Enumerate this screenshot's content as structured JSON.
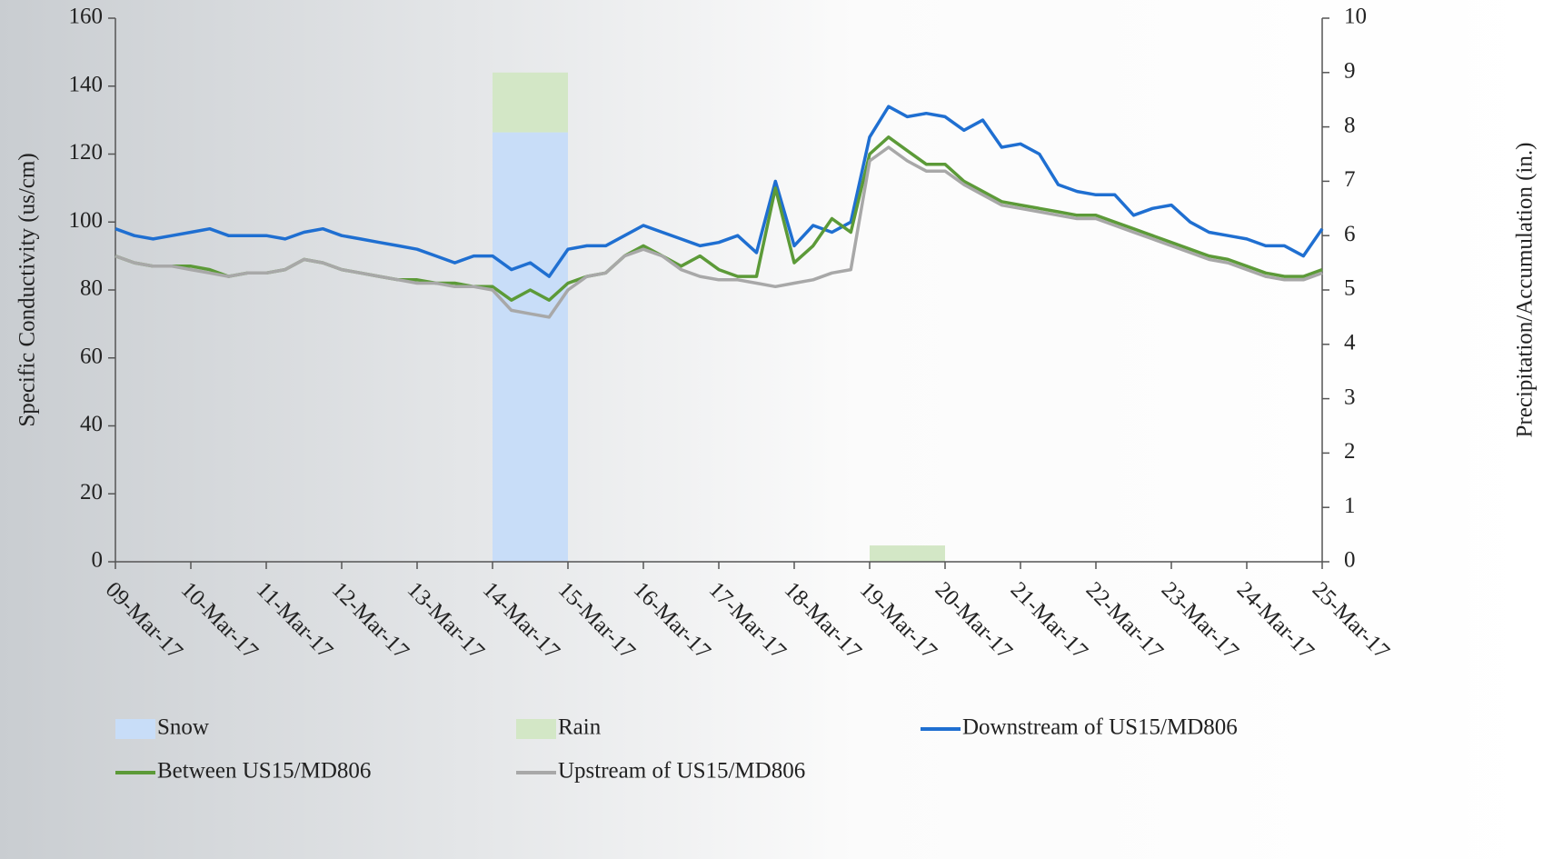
{
  "chart_data": {
    "type": "line",
    "y_label": "Specific Conductivity (us/cm)",
    "y2_label": "Precipitation/Accumulation  (in.)",
    "xlim": [
      0,
      16
    ],
    "xticks": [
      {
        "value": 0,
        "label": "09-Mar-17"
      },
      {
        "value": 1,
        "label": "10-Mar-17"
      },
      {
        "value": 2,
        "label": "11-Mar-17"
      },
      {
        "value": 3,
        "label": "12-Mar-17"
      },
      {
        "value": 4,
        "label": "13-Mar-17"
      },
      {
        "value": 5,
        "label": "14-Mar-17"
      },
      {
        "value": 6,
        "label": "15-Mar-17"
      },
      {
        "value": 7,
        "label": "16-Mar-17"
      },
      {
        "value": 8,
        "label": "17-Mar-17"
      },
      {
        "value": 9,
        "label": "18-Mar-17"
      },
      {
        "value": 10,
        "label": "19-Mar-17"
      },
      {
        "value": 11,
        "label": "20-Mar-17"
      },
      {
        "value": 12,
        "label": "21-Mar-17"
      },
      {
        "value": 13,
        "label": "22-Mar-17"
      },
      {
        "value": 14,
        "label": "23-Mar-17"
      },
      {
        "value": 15,
        "label": "24-Mar-17"
      },
      {
        "value": 16,
        "label": "25-Mar-17"
      }
    ],
    "ylim": [
      0,
      160
    ],
    "yticks": [
      0,
      20,
      40,
      60,
      80,
      100,
      120,
      140,
      160
    ],
    "y2lim": [
      0,
      10
    ],
    "y2ticks": [
      0,
      1,
      2,
      3,
      4,
      5,
      6,
      7,
      8,
      9,
      10
    ],
    "bars": [
      {
        "name": "Snow",
        "color": "#c8ddf8",
        "axis": "y2",
        "x_start": [
          5
        ],
        "x_end": [
          6
        ],
        "values": [
          7.9
        ]
      },
      {
        "name": "Rain",
        "color": "#d3e7c6",
        "axis": "y2",
        "x_start": [
          5,
          10
        ],
        "x_end": [
          6,
          11
        ],
        "values": [
          1.1,
          0.3
        ]
      }
    ],
    "x": [
      0,
      0.25,
      0.5,
      0.75,
      1,
      1.25,
      1.5,
      1.75,
      2,
      2.25,
      2.5,
      2.75,
      3,
      3.25,
      3.5,
      3.75,
      4,
      4.25,
      4.5,
      4.75,
      5,
      5.25,
      5.5,
      5.75,
      6,
      6.25,
      6.5,
      6.75,
      7,
      7.25,
      7.5,
      7.75,
      8,
      8.25,
      8.5,
      8.75,
      9,
      9.25,
      9.5,
      9.75,
      10,
      10.25,
      10.5,
      10.75,
      11,
      11.25,
      11.5,
      11.75,
      12,
      12.25,
      12.5,
      12.75,
      13,
      13.25,
      13.5,
      13.75,
      14,
      14.25,
      14.5,
      14.75,
      15,
      15.25,
      15.5,
      15.75,
      16
    ],
    "series": [
      {
        "name": "Downstream of US15/MD806",
        "color": "#1f6fd1",
        "values": [
          98,
          96,
          95,
          96,
          97,
          98,
          96,
          96,
          96,
          95,
          97,
          98,
          96,
          95,
          94,
          93,
          92,
          90,
          88,
          90,
          90,
          86,
          88,
          84,
          92,
          93,
          93,
          96,
          99,
          97,
          95,
          93,
          94,
          96,
          91,
          112,
          93,
          99,
          97,
          100,
          125,
          134,
          131,
          132,
          131,
          127,
          130,
          122,
          123,
          120,
          111,
          109,
          108,
          108,
          102,
          104,
          105,
          100,
          97,
          96,
          95,
          93,
          93,
          90,
          98
        ]
      },
      {
        "name": "Between US15/MD806",
        "color": "#5c9a38",
        "values": [
          90,
          88,
          87,
          87,
          87,
          86,
          84,
          85,
          85,
          86,
          89,
          88,
          86,
          85,
          84,
          83,
          83,
          82,
          82,
          81,
          81,
          77,
          80,
          77,
          82,
          84,
          85,
          90,
          93,
          90,
          87,
          90,
          86,
          84,
          84,
          110,
          88,
          93,
          101,
          97,
          120,
          125,
          121,
          117,
          117,
          112,
          109,
          106,
          105,
          104,
          103,
          102,
          102,
          100,
          98,
          96,
          94,
          92,
          90,
          89,
          87,
          85,
          84,
          84,
          86
        ]
      },
      {
        "name": "Upstream of US15/MD806",
        "color": "#a8a8a8",
        "values": [
          90,
          88,
          87,
          87,
          86,
          85,
          84,
          85,
          85,
          86,
          89,
          88,
          86,
          85,
          84,
          83,
          82,
          82,
          81,
          81,
          80,
          74,
          73,
          72,
          80,
          84,
          85,
          90,
          92,
          90,
          86,
          84,
          83,
          83,
          82,
          81,
          82,
          83,
          85,
          86,
          118,
          122,
          118,
          115,
          115,
          111,
          108,
          105,
          104,
          103,
          102,
          101,
          101,
          99,
          97,
          95,
          93,
          91,
          89,
          88,
          86,
          84,
          83,
          83,
          85
        ]
      }
    ]
  }
}
